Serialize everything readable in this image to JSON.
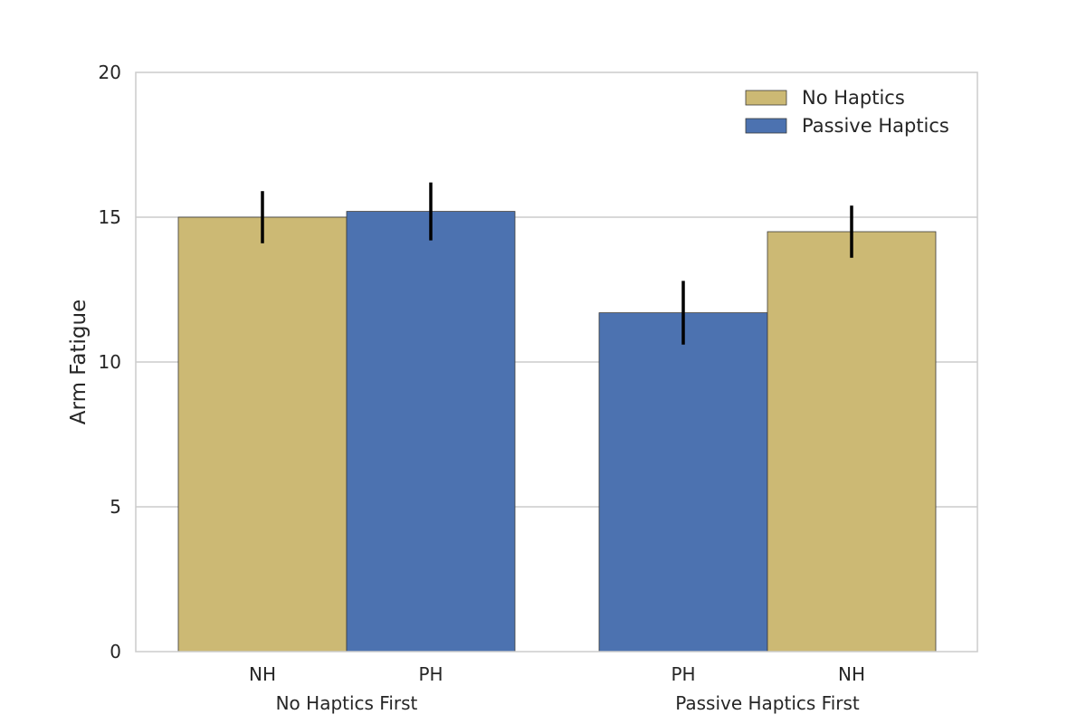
{
  "chart_data": {
    "type": "bar",
    "title": "",
    "xlabel": "",
    "ylabel": "Arm Fatigue",
    "ylim": [
      0,
      20
    ],
    "yticks": [
      0,
      5,
      10,
      15,
      20
    ],
    "grid": "horizontal",
    "legend_position": "top-right",
    "series_colors": {
      "No Haptics": "#ccb974",
      "Passive Haptics": "#4c72b0"
    },
    "groups": [
      {
        "label": "No Haptics First",
        "bars": [
          {
            "category": "NH",
            "series": "No Haptics",
            "value": 15.0,
            "error_low": 14.1,
            "error_high": 15.9
          },
          {
            "category": "PH",
            "series": "Passive Haptics",
            "value": 15.2,
            "error_low": 14.2,
            "error_high": 16.2
          }
        ]
      },
      {
        "label": "Passive Haptics First",
        "bars": [
          {
            "category": "PH",
            "series": "Passive Haptics",
            "value": 11.7,
            "error_low": 10.6,
            "error_high": 12.8
          },
          {
            "category": "NH",
            "series": "No Haptics",
            "value": 14.5,
            "error_low": 13.6,
            "error_high": 15.4
          }
        ]
      }
    ],
    "legend": [
      {
        "name": "No Haptics",
        "color": "#ccb974"
      },
      {
        "name": "Passive Haptics",
        "color": "#4c72b0"
      }
    ]
  }
}
